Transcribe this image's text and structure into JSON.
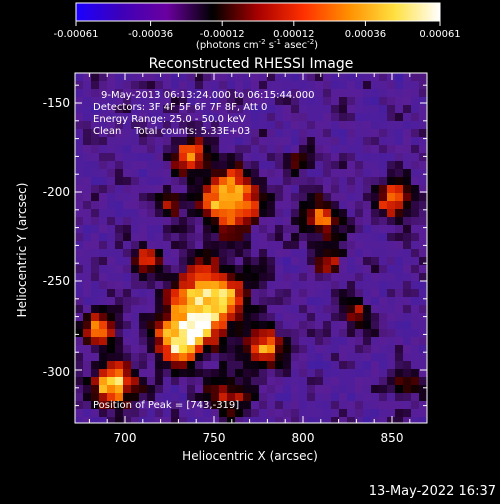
{
  "colorbar": {
    "ticks": [
      "-0.00061",
      "-0.00036",
      "-0.00012",
      "0.00012",
      "0.00036",
      "0.00061"
    ],
    "units_main": "(photons cm",
    "units_exp1": "-2",
    "units_s": " s",
    "units_exp2": "-1",
    "units_asec": " asec",
    "units_exp3": "-2",
    "units_close": ")",
    "range": [
      -0.00061,
      0.00061
    ],
    "colors": [
      "#1b00ff",
      "#3e00b8",
      "#6a00a0",
      "#000000",
      "#a80000",
      "#ff3000",
      "#ff9000",
      "#ffe040",
      "#ffffff"
    ]
  },
  "plot": {
    "title": "Reconstructed RHESSI Image",
    "xlabel": "Heliocentric X (arcsec)",
    "ylabel": "Heliocentric Y (arcsec)",
    "xticks": [
      "700",
      "750",
      "800",
      "850"
    ],
    "yticks": [
      "-150",
      "-200",
      "-250",
      "-300"
    ],
    "info_lines": [
      "9-May-2013 06:13:24.000 to 06:15:44.000",
      "Detectors: 3F 4F 5F 6F 7F 8F, Att 0",
      "Energy Range: 25.0 - 50.0 keV",
      "Clean    Total counts: 5.33E+03"
    ],
    "peak_label": "Position of Peak = [743,-319]"
  },
  "chart_data": {
    "type": "heatmap",
    "title": "Reconstructed RHESSI Image",
    "xlabel": "Heliocentric X (arcsec)",
    "ylabel": "Heliocentric Y (arcsec)",
    "xlim": [
      670,
      866
    ],
    "ylim": [
      -328,
      -137
    ],
    "colorbar_range": [
      -0.00061,
      0.00061
    ],
    "peak_position": [
      743,
      -319
    ],
    "time_range": "9-May-2013 06:13:24.000 to 06:15:44.000",
    "energy_range_kev": [
      25.0,
      50.0
    ],
    "total_counts": 5330
  },
  "footer": {
    "timestamp": "13-May-2022 16:37"
  }
}
